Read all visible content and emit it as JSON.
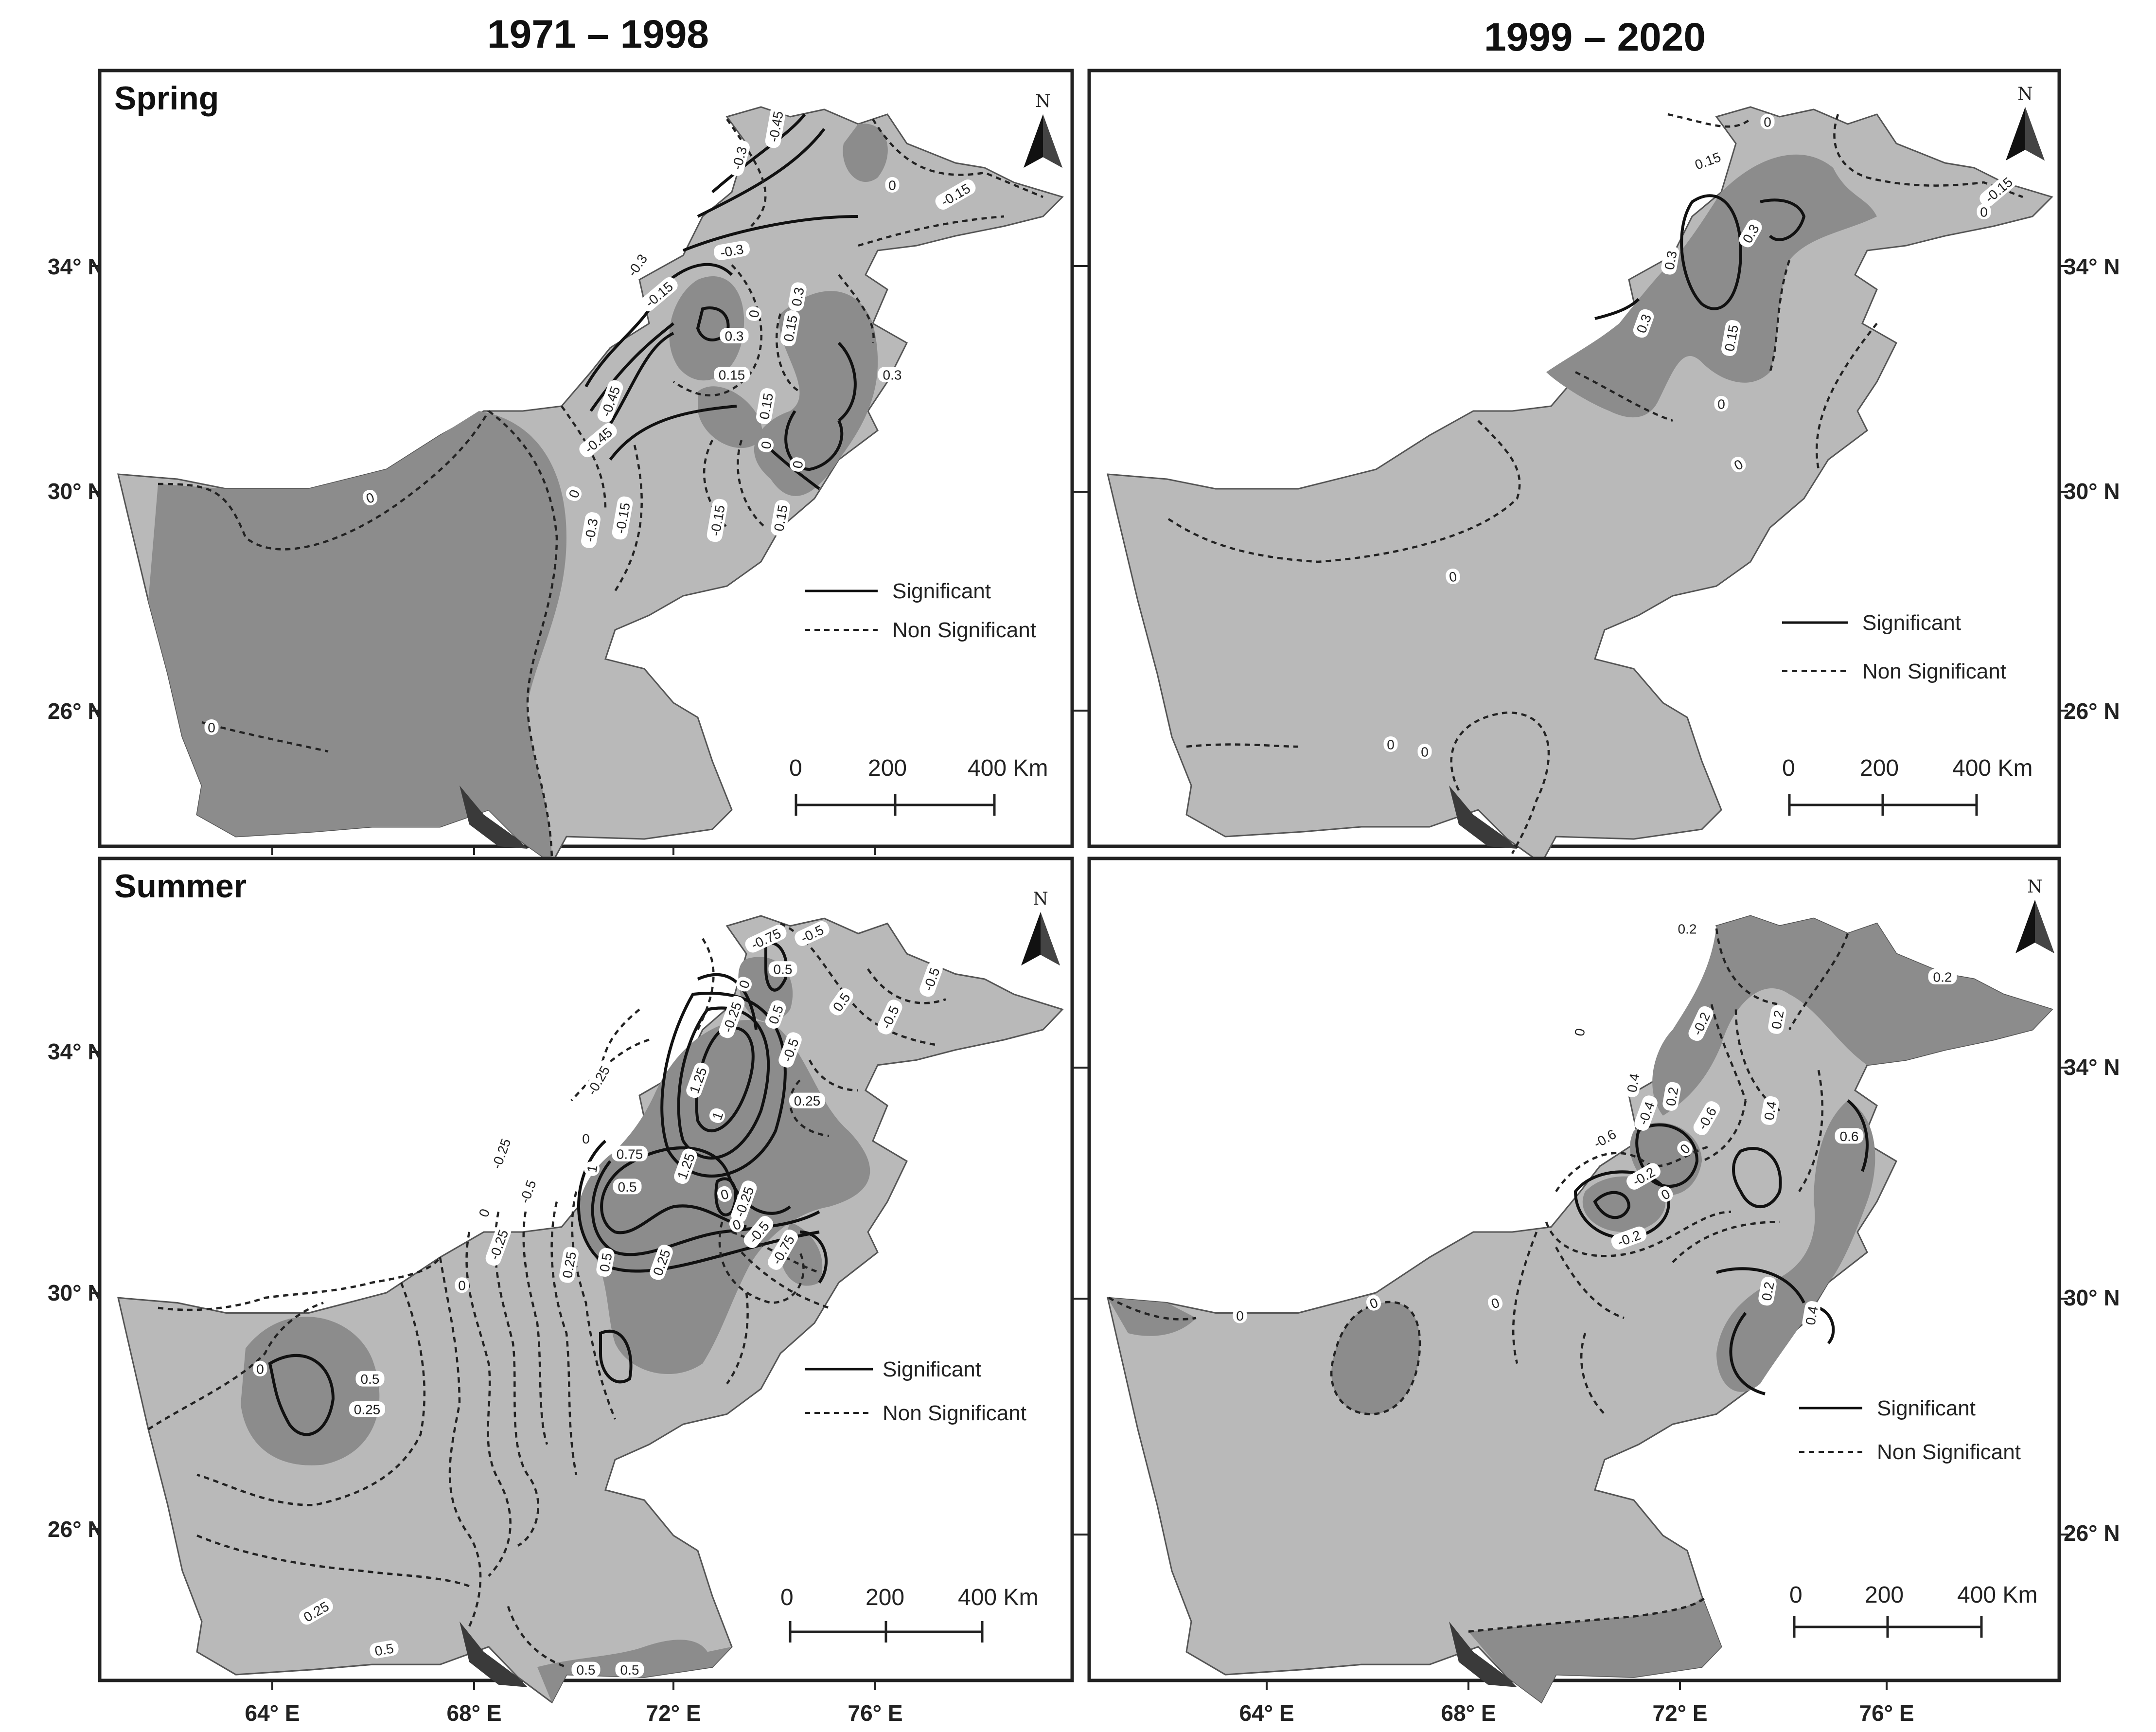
{
  "columns": [
    "1971 – 1998",
    "1999 – 2020"
  ],
  "seasons": [
    "Spring",
    "Summer"
  ],
  "lat_labels": [
    "34° N",
    "30° N",
    "26° N"
  ],
  "lon_labels": [
    "64° E",
    "68° E",
    "72° E",
    "76° E"
  ],
  "legend": {
    "significant": "Significant",
    "non_significant": "Non Significant"
  },
  "scale_bar": {
    "labels": [
      "0",
      "200",
      "400 Km"
    ]
  },
  "north_label": "N",
  "colors": {
    "high_shade": "#8c8c8c",
    "low_shade": "#b9b9b9",
    "coast": "#3a3a3a",
    "frame": "#222222"
  },
  "panels": [
    {
      "id": "spring-1971-1998",
      "contour_labels": [
        "-0.45",
        "-0.3",
        "0",
        "-0.15",
        "-0.3",
        "-0.3",
        "-0.15",
        "0.3",
        "0.15",
        "0",
        "0.3",
        "0.15",
        "0.3",
        "-0.45",
        "-0.45",
        "0.15",
        "0",
        "0",
        "0.15",
        "0",
        "-0.15",
        "-0.3",
        "-0.15",
        "0",
        "0"
      ]
    },
    {
      "id": "spring-1999-2020",
      "contour_labels": [
        "0",
        "0.15",
        "0.3",
        "0.3",
        "0.3",
        "0.15",
        "-0.15",
        "0",
        "0",
        "0",
        "0",
        "0",
        "0"
      ]
    },
    {
      "id": "summer-1971-1998",
      "contour_labels": [
        "-0.75",
        "-0.5",
        "0.5",
        "0",
        "0.5",
        "-0.5",
        "-0.25",
        "0.5",
        "-0.25",
        "1.25",
        "-0.5",
        "0",
        "0.25",
        "0.75",
        "1.25",
        "1",
        "1",
        "-0.25",
        "-0.5",
        "0",
        "0.5",
        "-0.25",
        "0",
        "-0.5",
        "-0.75",
        "0.25",
        "0.5",
        "0.25",
        "0",
        "-0.25",
        "0",
        "0.5",
        "0.25",
        "0",
        "0.25",
        "0.5",
        "0.5",
        "0.5",
        "-0.5"
      ]
    },
    {
      "id": "summer-1999-2020",
      "contour_labels": [
        "0.2",
        "0.2",
        "-0.2",
        "0.2",
        "0",
        "0.4",
        "0.2",
        "-0.4",
        "-0.6",
        "-0.6",
        "0.4",
        "0.6",
        "0",
        "-0.2",
        "0",
        "-0.2",
        "0.2",
        "0.4",
        "0",
        "0",
        "0"
      ]
    }
  ]
}
